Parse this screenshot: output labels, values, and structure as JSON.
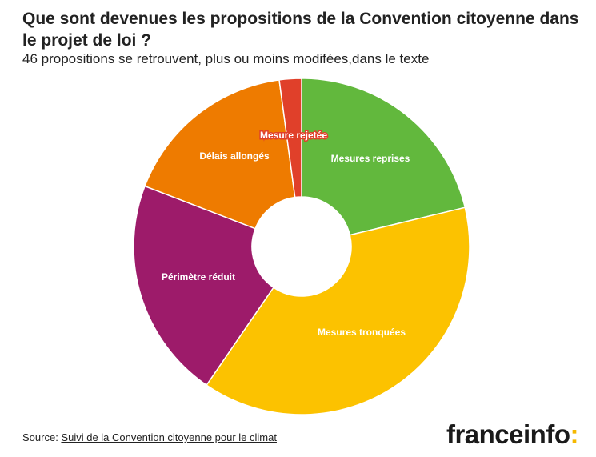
{
  "chart_data": {
    "type": "pie",
    "variant": "donut",
    "title": "Que sont devenues les propositions de la Convention citoyenne dans le projet de loi ?",
    "subtitle": "46 propositions se retrouvent, plus ou moins modifées,dans le texte",
    "slices": [
      {
        "label": "Mesures reprises",
        "value": 10,
        "color": "#62b83d"
      },
      {
        "label": "Mesures tronquées",
        "value": 18,
        "color": "#fcc200"
      },
      {
        "label": "Périmètre réduit",
        "value": 10,
        "color": "#9d1b6a"
      },
      {
        "label": "Délais allongés",
        "value": 8,
        "color": "#ee7b00"
      },
      {
        "label": "Mesure rejetée",
        "value": 1,
        "color": "#e0402a"
      }
    ],
    "start_angle": "top",
    "direction": "clockwise",
    "legend": "none"
  },
  "footer": {
    "source_prefix": "Source:",
    "source_link": "Suivi de la Convention citoyenne pour le climat"
  },
  "brand": {
    "name": "franceinfo",
    "colon": ":",
    "colon_color": "#f5b800"
  }
}
